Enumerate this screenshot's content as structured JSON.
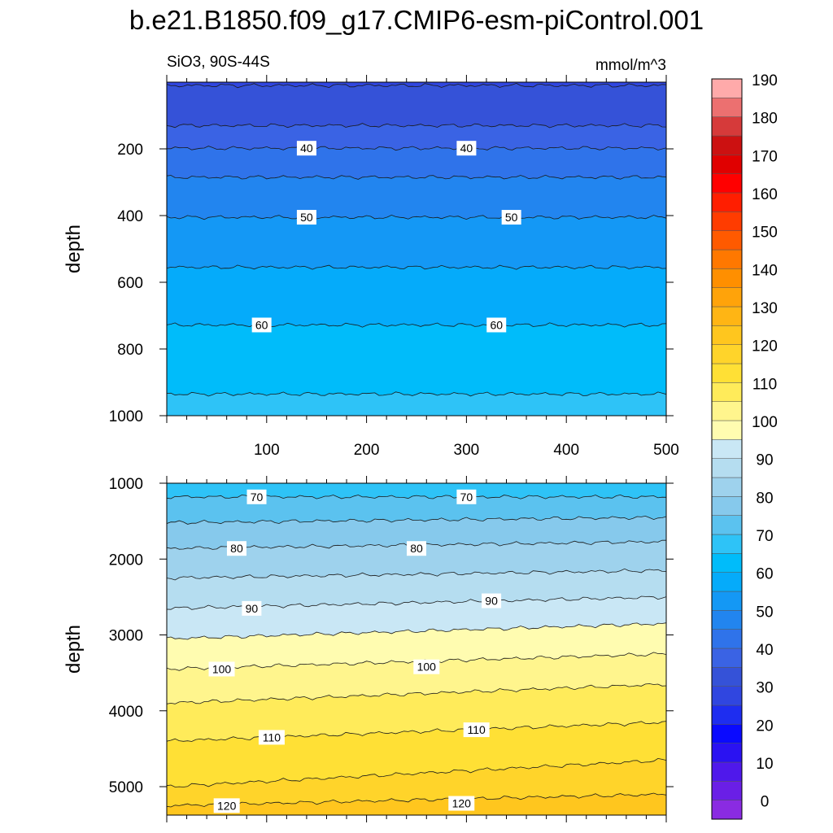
{
  "figure": {
    "title": "b.e21.B1850.f09_g17.CMIP6-esm-piControl.001",
    "left_string": "SiO3, 90S-44S",
    "right_string": "mmol/m^3"
  },
  "chart_data": [
    {
      "type": "contour",
      "name": "upper-panel",
      "xlabel": "",
      "ylabel": "depth",
      "xlim": [
        0,
        500
      ],
      "ylim": [
        0,
        1000
      ],
      "y_reversed": true,
      "x_ticks": [
        100,
        200,
        300,
        400,
        500
      ],
      "x_tick_labels": [
        "100",
        "200",
        "300",
        "400",
        "500"
      ],
      "y_ticks": [
        200,
        400,
        600,
        800,
        1000
      ],
      "y_tick_labels": [
        "200",
        "400",
        "600",
        "800",
        "1000"
      ],
      "contour_depths": [
        {
          "level": 30,
          "depth": 10
        },
        {
          "level": 35,
          "depth": 130
        },
        {
          "level": 40,
          "depth": 198
        },
        {
          "level": 45,
          "depth": 285
        },
        {
          "level": 50,
          "depth": 405
        },
        {
          "level": 55,
          "depth": 555
        },
        {
          "level": 60,
          "depth": 728
        },
        {
          "level": 65,
          "depth": 935
        }
      ],
      "contour_labels": [
        {
          "text": "40",
          "x": 140,
          "depth": 198
        },
        {
          "text": "40",
          "x": 300,
          "depth": 198
        },
        {
          "text": "50",
          "x": 140,
          "depth": 405
        },
        {
          "text": "50",
          "x": 345,
          "depth": 405
        },
        {
          "text": "60",
          "x": 95,
          "depth": 728
        },
        {
          "text": "60",
          "x": 330,
          "depth": 728
        }
      ]
    },
    {
      "type": "contour",
      "name": "lower-panel",
      "xlabel": "",
      "ylabel": "depth",
      "xlim": [
        0,
        500
      ],
      "ylim": [
        1000,
        5375
      ],
      "y_reversed": true,
      "y_ticks": [
        1000,
        2000,
        3000,
        4000,
        5000
      ],
      "y_tick_labels": [
        "1000",
        "2000",
        "3000",
        "4000",
        "5000"
      ],
      "contour_depths": [
        {
          "level": 70,
          "depth_left": 1180,
          "depth_right": 1180
        },
        {
          "level": 75,
          "depth_left": 1520,
          "depth_right": 1450
        },
        {
          "level": 80,
          "depth_left": 1860,
          "depth_right": 1770
        },
        {
          "level": 85,
          "depth_left": 2250,
          "depth_right": 2150
        },
        {
          "level": 90,
          "depth_left": 2650,
          "depth_right": 2500
        },
        {
          "level": 95,
          "depth_left": 3050,
          "depth_right": 2850
        },
        {
          "level": 100,
          "depth_left": 3450,
          "depth_right": 3250
        },
        {
          "level": 105,
          "depth_left": 3900,
          "depth_right": 3650
        },
        {
          "level": 110,
          "depth_left": 4400,
          "depth_right": 4150
        },
        {
          "level": 115,
          "depth_left": 5000,
          "depth_right": 4650
        },
        {
          "level": 120,
          "depth_left": 5250,
          "depth_right": 5100
        }
      ],
      "contour_labels": [
        {
          "text": "70",
          "x": 90,
          "depth": 1180
        },
        {
          "text": "70",
          "x": 300,
          "depth": 1180
        },
        {
          "text": "80",
          "x": 70,
          "depth": 1860
        },
        {
          "text": "80",
          "x": 250,
          "depth": 1860
        },
        {
          "text": "90",
          "x": 85,
          "depth": 2650
        },
        {
          "text": "90",
          "x": 325,
          "depth": 2550
        },
        {
          "text": "100",
          "x": 55,
          "depth": 3450
        },
        {
          "text": "100",
          "x": 260,
          "depth": 3420
        },
        {
          "text": "110",
          "x": 105,
          "depth": 4350
        },
        {
          "text": "110",
          "x": 310,
          "depth": 4250
        },
        {
          "text": "120",
          "x": 60,
          "depth": 5250
        },
        {
          "text": "120",
          "x": 295,
          "depth": 5220
        }
      ]
    }
  ],
  "colorbar": {
    "levels": [
      0,
      5,
      10,
      15,
      20,
      25,
      30,
      35,
      40,
      45,
      50,
      55,
      60,
      65,
      70,
      75,
      80,
      85,
      90,
      95,
      100,
      105,
      110,
      115,
      120,
      125,
      130,
      135,
      140,
      145,
      150,
      155,
      160,
      165,
      170,
      175,
      180,
      185,
      190
    ],
    "labels": [
      "0",
      "10",
      "20",
      "30",
      "40",
      "50",
      "60",
      "70",
      "80",
      "90",
      "100",
      "110",
      "120",
      "130",
      "140",
      "150",
      "160",
      "170",
      "180",
      "190"
    ],
    "label_values": [
      0,
      10,
      20,
      30,
      40,
      50,
      60,
      70,
      80,
      90,
      100,
      110,
      120,
      130,
      140,
      150,
      160,
      170,
      180,
      190
    ],
    "colors": [
      "#8a2be2",
      "#6a1fe6",
      "#4f18eb",
      "#2a12f2",
      "#0a0aff",
      "#1e2df0",
      "#3046e0",
      "#3552d8",
      "#3a63e4",
      "#2f73ea",
      "#2285ef",
      "#1498f5",
      "#05abfa",
      "#00bcfa",
      "#2ec3f7",
      "#5bc2ef",
      "#86c9ec",
      "#9ed2ed",
      "#b5ddf0",
      "#c9e7f5",
      "#fffcb0",
      "#fff58d",
      "#ffeb5a",
      "#ffe035",
      "#ffd42a",
      "#ffc61e",
      "#ffb514",
      "#ffa30a",
      "#ff8f00",
      "#ff7800",
      "#ff5a00",
      "#ff3c00",
      "#ff1e00",
      "#ff0000",
      "#e00000",
      "#cc1111",
      "#d63a3a",
      "#ec7070",
      "#ffaaaa"
    ]
  }
}
